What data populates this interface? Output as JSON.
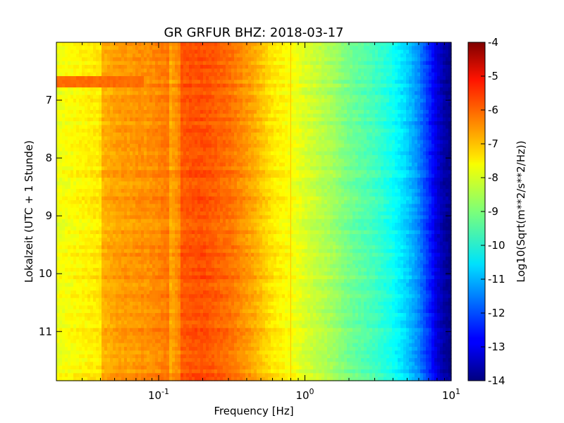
{
  "chart_data": {
    "type": "heatmap",
    "title": "GR GRFUR BHZ: 2018-03-17",
    "xlabel": "Frequency [Hz]",
    "ylabel": "Lokalzeit (UTC + 1 Stunde)",
    "x_scale": "log",
    "xlim": [
      0.02,
      10
    ],
    "x_ticks": [
      {
        "value": 0.1,
        "base": "10",
        "exp": "-1"
      },
      {
        "value": 1,
        "base": "10",
        "exp": "0"
      },
      {
        "value": 10,
        "base": "10",
        "exp": "1"
      }
    ],
    "ylim": [
      11.85,
      6.0
    ],
    "y_inverted": true,
    "y_ticks": [
      "7",
      "8",
      "9",
      "10",
      "11"
    ],
    "colorbar": {
      "label": "Log10(Sqrt(m**2/s**2/Hz))",
      "colormap": "jet",
      "min": -14,
      "max": -4,
      "ticks": [
        "-4",
        "-5",
        "-6",
        "-7",
        "-8",
        "-9",
        "-10",
        "-11",
        "-12",
        "-13",
        "-14"
      ]
    },
    "spectrum_profile": {
      "frequencies_hz": [
        0.02,
        0.04,
        0.06,
        0.08,
        0.12,
        0.14,
        0.2,
        0.3,
        0.45,
        0.6,
        0.8,
        1.0,
        1.5,
        2.0,
        3.0,
        4.0,
        5.0,
        6.0,
        7.0,
        8.0,
        9.0,
        10.0
      ],
      "log10_amplitude": [
        -7.7,
        -7.3,
        -7.0,
        -6.8,
        -6.5,
        -6.1,
        -6.0,
        -6.3,
        -6.9,
        -7.5,
        -7.8,
        -8.1,
        -8.6,
        -9.1,
        -9.6,
        -10.1,
        -10.7,
        -11.4,
        -12.3,
        -13.1,
        -13.6,
        -13.9
      ]
    },
    "band_offsets": [
      {
        "f_min": 0.02,
        "f_max": 0.04,
        "delta": -0.2
      },
      {
        "f_min": 0.04,
        "f_max": 0.06,
        "delta": 0.3
      },
      {
        "f_min": 0.06,
        "f_max": 0.08,
        "delta": 0.2
      },
      {
        "f_min": 0.08,
        "f_max": 0.12,
        "delta": 0.1
      },
      {
        "f_min": 0.12,
        "f_max": 0.14,
        "delta": -0.4
      }
    ],
    "event": {
      "time_start": 6.6,
      "time_end": 6.75,
      "f_min": 0.02,
      "f_max": 0.08,
      "value": -6.3
    },
    "narrow_line_hz": 0.8
  }
}
